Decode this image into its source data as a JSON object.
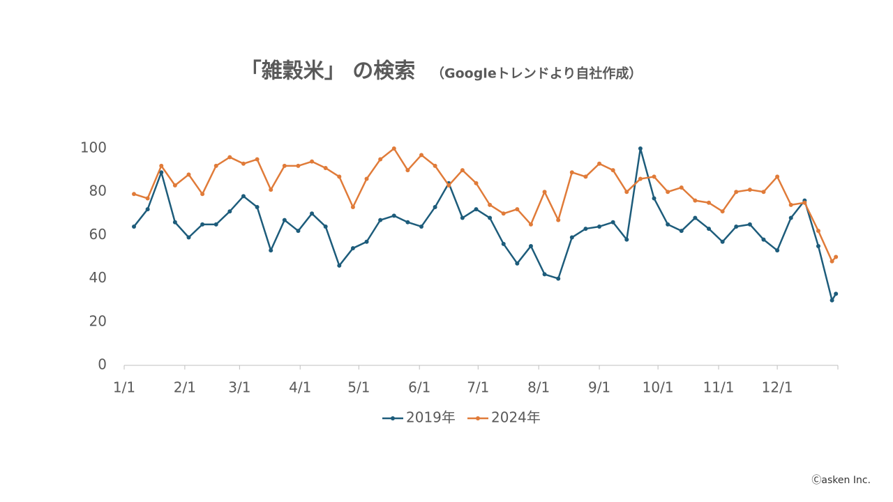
{
  "chart_data": {
    "type": "line",
    "title": "「雑穀米」 の検索",
    "subtitle": "（Googleトレンドより自社作成）",
    "copyright": "Ⓒasken Inc.",
    "x": [
      5,
      12,
      19,
      26,
      33,
      40,
      47,
      54,
      61,
      68,
      75,
      82,
      89,
      96,
      103,
      110,
      117,
      124,
      131,
      138,
      145,
      152,
      159,
      166,
      173,
      180,
      187,
      194,
      201,
      208,
      215,
      222,
      229,
      236,
      243,
      250,
      257,
      264,
      271,
      278,
      285,
      292,
      299,
      306,
      313,
      320,
      327,
      334,
      341,
      348,
      355,
      362,
      364
    ],
    "xlim": [
      0,
      365
    ],
    "xticks": [
      {
        "value": 0,
        "label": "1/1"
      },
      {
        "value": 31,
        "label": "2/1"
      },
      {
        "value": 59,
        "label": "3/1"
      },
      {
        "value": 90,
        "label": "4/1"
      },
      {
        "value": 120,
        "label": "5/1"
      },
      {
        "value": 151,
        "label": "6/1"
      },
      {
        "value": 181,
        "label": "7/1"
      },
      {
        "value": 212,
        "label": "8/1"
      },
      {
        "value": 243,
        "label": "9/1"
      },
      {
        "value": 273,
        "label": "10/1"
      },
      {
        "value": 304,
        "label": "11/1"
      },
      {
        "value": 334,
        "label": "12/1"
      }
    ],
    "ylim": [
      0,
      100
    ],
    "yticks": [
      0,
      20,
      40,
      60,
      80,
      100
    ],
    "grid": false,
    "legend": "bottom",
    "series": [
      {
        "name": "2019年",
        "color": "#1d5c7b",
        "values": [
          64,
          72,
          89,
          66,
          59,
          65,
          65,
          71,
          78,
          73,
          53,
          67,
          62,
          70,
          64,
          46,
          54,
          57,
          67,
          69,
          66,
          64,
          73,
          84,
          68,
          72,
          68,
          56,
          47,
          55,
          42,
          40,
          59,
          63,
          64,
          66,
          58,
          100,
          77,
          65,
          62,
          68,
          63,
          57,
          64,
          65,
          58,
          53,
          68,
          76,
          55,
          30,
          33
        ]
      },
      {
        "name": "2024年",
        "color": "#e07b39",
        "values": [
          79,
          77,
          92,
          83,
          88,
          79,
          92,
          96,
          93,
          95,
          81,
          92,
          92,
          94,
          91,
          87,
          73,
          86,
          95,
          100,
          90,
          97,
          92,
          83,
          90,
          84,
          74,
          70,
          72,
          65,
          80,
          67,
          89,
          87,
          93,
          90,
          80,
          86,
          87,
          80,
          82,
          76,
          75,
          71,
          80,
          81,
          80,
          87,
          74,
          75,
          62,
          48,
          50
        ]
      }
    ]
  }
}
